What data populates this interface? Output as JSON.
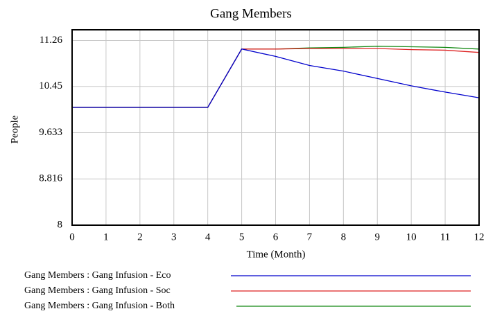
{
  "chart_data": {
    "type": "line",
    "title": "Gang Members",
    "xlabel": "Time (Month)",
    "ylabel": "People",
    "x": [
      0,
      1,
      2,
      3,
      4,
      5,
      6,
      7,
      8,
      9,
      10,
      11,
      12
    ],
    "xlim": [
      0,
      12
    ],
    "xticks": [
      0,
      1,
      2,
      3,
      4,
      5,
      6,
      7,
      8,
      9,
      10,
      11,
      12
    ],
    "ylim": [
      8,
      11.45
    ],
    "yticks": [
      8,
      8.816,
      9.633,
      10.45,
      11.26
    ],
    "grid": true,
    "series": [
      {
        "name": "Gang Members : Gang Infusion - Eco",
        "color": "#0000cc",
        "values": [
          10.08,
          10.08,
          10.08,
          10.08,
          10.08,
          11.11,
          10.98,
          10.82,
          10.72,
          10.59,
          10.46,
          10.35,
          10.25
        ]
      },
      {
        "name": "Gang Members : Gang Infusion - Soc",
        "color": "#dd2222",
        "values": [
          10.08,
          10.08,
          10.08,
          10.08,
          10.08,
          11.11,
          11.11,
          11.12,
          11.12,
          11.12,
          11.1,
          11.09,
          11.05
        ]
      },
      {
        "name": "Gang Members : Gang Infusion - Both",
        "color": "#118811",
        "values": [
          10.08,
          10.08,
          10.08,
          10.08,
          10.08,
          11.11,
          11.11,
          11.13,
          11.14,
          11.16,
          11.15,
          11.14,
          11.11
        ]
      }
    ]
  }
}
